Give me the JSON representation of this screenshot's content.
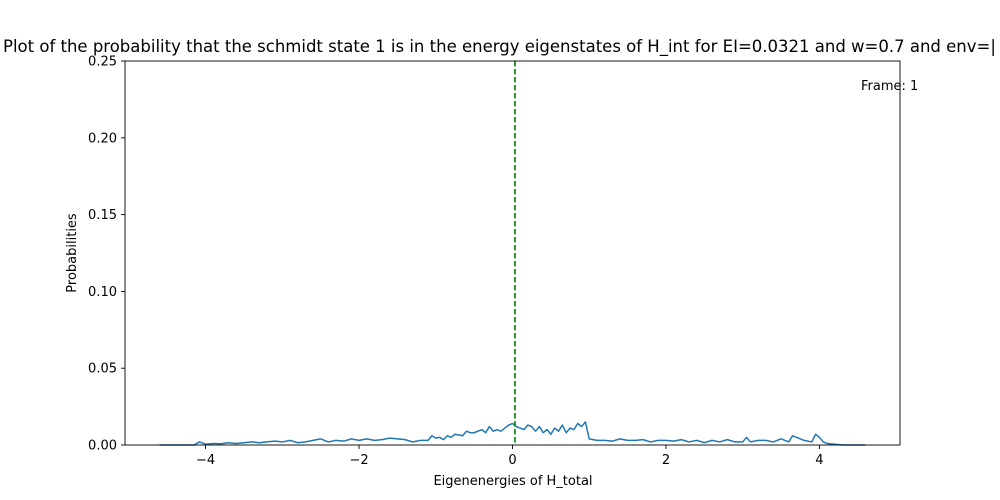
{
  "chart_data": {
    "type": "line",
    "title": "Plot of the probability that the schmidt state 1 is in the energy eigenstates of H_int for EI=0.0321 and w=0.7 and env=|",
    "xlabel": "Eigenenergies of H_total",
    "ylabel": "Probabilities",
    "annotation": "Frame: 1",
    "xlim": [
      -5.05,
      5.05
    ],
    "ylim": [
      0,
      0.25
    ],
    "xticks": [
      -4,
      -2,
      0,
      2,
      4
    ],
    "xtick_labels": [
      "−4",
      "−2",
      "0",
      "2",
      "4"
    ],
    "yticks": [
      0,
      0.05,
      0.1,
      0.15,
      0.2,
      0.25
    ],
    "ytick_labels": [
      "0.00",
      "0.05",
      "0.10",
      "0.15",
      "0.20",
      "0.25"
    ],
    "grid": false,
    "vline": {
      "x": 0.0321,
      "color": "#008000",
      "style": "dashed"
    },
    "series": [
      {
        "color": "#1f77b4",
        "x": [
          -4.6,
          -4.3,
          -4.15,
          -4.08,
          -4.0,
          -3.9,
          -3.8,
          -3.7,
          -3.6,
          -3.5,
          -3.4,
          -3.3,
          -3.2,
          -3.1,
          -3.0,
          -2.9,
          -2.8,
          -2.7,
          -2.6,
          -2.5,
          -2.45,
          -2.4,
          -2.3,
          -2.2,
          -2.1,
          -2.0,
          -1.9,
          -1.8,
          -1.7,
          -1.6,
          -1.5,
          -1.4,
          -1.3,
          -1.2,
          -1.1,
          -1.05,
          -1.0,
          -0.95,
          -0.9,
          -0.85,
          -0.8,
          -0.75,
          -0.7,
          -0.65,
          -0.6,
          -0.55,
          -0.5,
          -0.45,
          -0.4,
          -0.35,
          -0.3,
          -0.25,
          -0.2,
          -0.15,
          -0.1,
          -0.05,
          0.0,
          0.05,
          0.1,
          0.15,
          0.2,
          0.25,
          0.3,
          0.35,
          0.4,
          0.45,
          0.5,
          0.55,
          0.6,
          0.65,
          0.7,
          0.75,
          0.8,
          0.85,
          0.9,
          0.95,
          1.0,
          1.05,
          1.1,
          1.2,
          1.3,
          1.4,
          1.5,
          1.6,
          1.7,
          1.8,
          1.9,
          2.0,
          2.1,
          2.2,
          2.3,
          2.4,
          2.5,
          2.6,
          2.7,
          2.8,
          2.9,
          3.0,
          3.05,
          3.1,
          3.2,
          3.3,
          3.4,
          3.5,
          3.6,
          3.65,
          3.7,
          3.8,
          3.9,
          3.95,
          4.0,
          4.05,
          4.1,
          4.3,
          4.6
        ],
        "y": [
          0.0,
          0.0,
          0.0,
          0.002,
          0.0005,
          0.001,
          0.0008,
          0.0015,
          0.001,
          0.0015,
          0.002,
          0.0015,
          0.002,
          0.0025,
          0.002,
          0.003,
          0.0015,
          0.002,
          0.003,
          0.004,
          0.003,
          0.002,
          0.003,
          0.0025,
          0.004,
          0.003,
          0.004,
          0.003,
          0.0035,
          0.0045,
          0.004,
          0.0035,
          0.002,
          0.003,
          0.003,
          0.006,
          0.0045,
          0.005,
          0.0035,
          0.006,
          0.005,
          0.007,
          0.0065,
          0.006,
          0.009,
          0.008,
          0.008,
          0.009,
          0.01,
          0.008,
          0.012,
          0.009,
          0.01,
          0.009,
          0.011,
          0.013,
          0.014,
          0.012,
          0.011,
          0.01,
          0.013,
          0.012,
          0.009,
          0.012,
          0.008,
          0.01,
          0.007,
          0.011,
          0.009,
          0.013,
          0.008,
          0.011,
          0.01,
          0.014,
          0.012,
          0.015,
          0.004,
          0.0035,
          0.003,
          0.003,
          0.0025,
          0.004,
          0.003,
          0.003,
          0.0035,
          0.002,
          0.003,
          0.003,
          0.0025,
          0.0035,
          0.002,
          0.003,
          0.0015,
          0.003,
          0.002,
          0.0035,
          0.002,
          0.002,
          0.005,
          0.002,
          0.003,
          0.003,
          0.002,
          0.004,
          0.002,
          0.006,
          0.005,
          0.003,
          0.002,
          0.007,
          0.005,
          0.002,
          0.001,
          0.0,
          0.0
        ]
      }
    ]
  }
}
